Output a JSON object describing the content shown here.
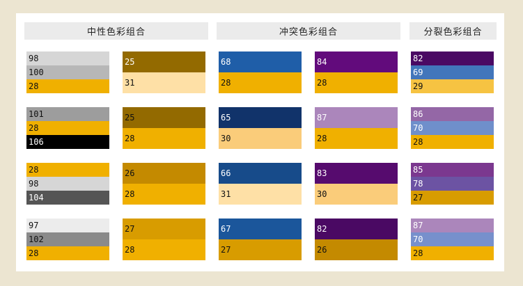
{
  "columns": [
    {
      "header": "中性色彩组合",
      "groups": [
        [
          {
            "stripes": [
              {
                "label": "98",
                "color": "#d6d6d6",
                "text": "#111111"
              },
              {
                "label": "100",
                "color": "#b7b7b7",
                "text": "#111111"
              },
              {
                "label": "28",
                "color": "#f0b000",
                "text": "#111111"
              }
            ]
          },
          {
            "stripes": [
              {
                "label": "25",
                "color": "#936a00",
                "text": "#ffffff"
              },
              {
                "label": "31",
                "color": "#fee0a6",
                "text": "#111111"
              }
            ]
          }
        ],
        [
          {
            "stripes": [
              {
                "label": "101",
                "color": "#9d9d9d",
                "text": "#111111"
              },
              {
                "label": "28",
                "color": "#f0b000",
                "text": "#111111"
              },
              {
                "label": "106",
                "color": "#000000",
                "text": "#ffffff"
              }
            ]
          },
          {
            "stripes": [
              {
                "label": "25",
                "color": "#936a00",
                "text": "#111111"
              },
              {
                "label": "28",
                "color": "#f0b000",
                "text": "#111111"
              }
            ]
          }
        ],
        [
          {
            "stripes": [
              {
                "label": "28",
                "color": "#f0b000",
                "text": "#111111"
              },
              {
                "label": "98",
                "color": "#d6d6d6",
                "text": "#111111"
              },
              {
                "label": "104",
                "color": "#555555",
                "text": "#ffffff"
              }
            ]
          },
          {
            "stripes": [
              {
                "label": "26",
                "color": "#c48a00",
                "text": "#111111"
              },
              {
                "label": "28",
                "color": "#f0b000",
                "text": "#111111"
              }
            ]
          }
        ],
        [
          {
            "stripes": [
              {
                "label": "97",
                "color": "#ececec",
                "text": "#111111"
              },
              {
                "label": "102",
                "color": "#8a8a8a",
                "text": "#111111"
              },
              {
                "label": "28",
                "color": "#f0b000",
                "text": "#111111"
              }
            ]
          },
          {
            "stripes": [
              {
                "label": "27",
                "color": "#d89c00",
                "text": "#111111"
              },
              {
                "label": "28",
                "color": "#f0b000",
                "text": "#111111"
              }
            ]
          }
        ]
      ]
    },
    {
      "header": "冲突色彩组合",
      "groups": [
        [
          {
            "stripes": [
              {
                "label": "68",
                "color": "#1f5ea8",
                "text": "#ffffff"
              },
              {
                "label": "28",
                "color": "#f0b000",
                "text": "#111111"
              }
            ]
          },
          {
            "stripes": [
              {
                "label": "84",
                "color": "#620b7c",
                "text": "#ffffff"
              },
              {
                "label": "28",
                "color": "#f0b000",
                "text": "#111111"
              }
            ]
          }
        ],
        [
          {
            "stripes": [
              {
                "label": "65",
                "color": "#11336a",
                "text": "#ffffff"
              },
              {
                "label": "30",
                "color": "#facc7a",
                "text": "#111111"
              }
            ]
          },
          {
            "stripes": [
              {
                "label": "87",
                "color": "#ab86bb",
                "text": "#ffffff"
              },
              {
                "label": "28",
                "color": "#f0b000",
                "text": "#111111"
              }
            ]
          }
        ],
        [
          {
            "stripes": [
              {
                "label": "66",
                "color": "#174b8a",
                "text": "#ffffff"
              },
              {
                "label": "31",
                "color": "#fee0a6",
                "text": "#111111"
              }
            ]
          },
          {
            "stripes": [
              {
                "label": "83",
                "color": "#560b6e",
                "text": "#ffffff"
              },
              {
                "label": "30",
                "color": "#facc7a",
                "text": "#111111"
              }
            ]
          }
        ],
        [
          {
            "stripes": [
              {
                "label": "67",
                "color": "#1b569b",
                "text": "#ffffff"
              },
              {
                "label": "27",
                "color": "#d89c00",
                "text": "#111111"
              }
            ]
          },
          {
            "stripes": [
              {
                "label": "82",
                "color": "#4a0963",
                "text": "#ffffff"
              },
              {
                "label": "26",
                "color": "#c48a00",
                "text": "#111111"
              }
            ]
          }
        ]
      ]
    },
    {
      "header": "分裂色彩组合",
      "groups": [
        [
          {
            "stripes": [
              {
                "label": "82",
                "color": "#4a0963",
                "text": "#ffffff"
              },
              {
                "label": "69",
                "color": "#4276bb",
                "text": "#ffffff"
              },
              {
                "label": "29",
                "color": "#f6c342",
                "text": "#111111"
              }
            ]
          }
        ],
        [
          {
            "stripes": [
              {
                "label": "86",
                "color": "#9467a6",
                "text": "#ffffff"
              },
              {
                "label": "70",
                "color": "#6f8fcb",
                "text": "#ffffff"
              },
              {
                "label": "28",
                "color": "#f0b000",
                "text": "#111111"
              }
            ]
          }
        ],
        [
          {
            "stripes": [
              {
                "label": "85",
                "color": "#7b388f",
                "text": "#ffffff"
              },
              {
                "label": "78",
                "color": "#6c53a3",
                "text": "#ffffff"
              },
              {
                "label": "27",
                "color": "#d89c00",
                "text": "#111111"
              }
            ]
          }
        ],
        [
          {
            "stripes": [
              {
                "label": "87",
                "color": "#ab86bb",
                "text": "#ffffff"
              },
              {
                "label": "70",
                "color": "#7790cc",
                "text": "#ffffff"
              },
              {
                "label": "28",
                "color": "#f0b000",
                "text": "#111111"
              }
            ]
          }
        ]
      ]
    }
  ]
}
